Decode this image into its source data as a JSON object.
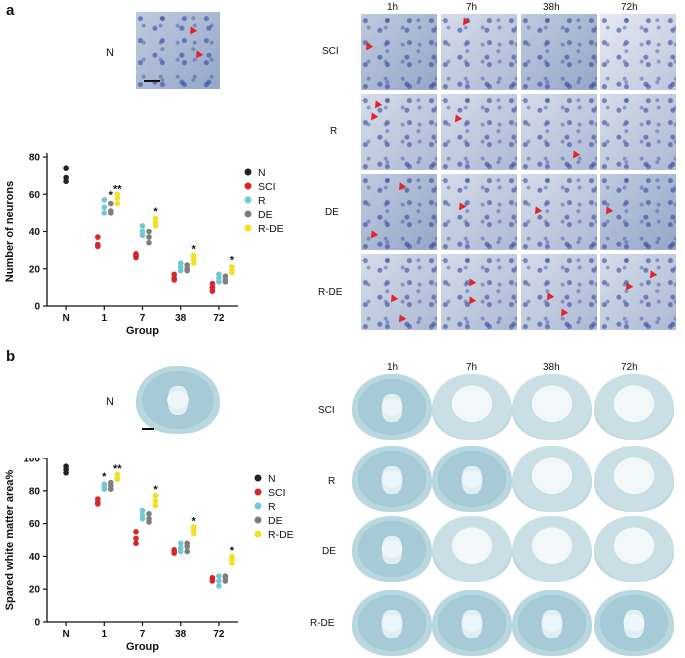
{
  "panels": {
    "a": {
      "letter": "a",
      "control_label": "N",
      "time_labels": [
        "1h",
        "7h",
        "38h",
        "72h"
      ],
      "row_labels": [
        "SCI",
        "R",
        "DE",
        "R-DE"
      ]
    },
    "b": {
      "letter": "b",
      "control_label": "N",
      "time_labels": [
        "1h",
        "7h",
        "38h",
        "72h"
      ],
      "row_labels": [
        "SCI",
        "R",
        "DE",
        "R-DE"
      ]
    }
  },
  "colors": {
    "N": "#222222",
    "SCI": "#d7262b",
    "R": "#72c8d1",
    "DE": "#7e7e7e",
    "R-DE": "#f2e024"
  },
  "chart_data": [
    {
      "type": "scatter",
      "title": "",
      "xlabel": "Group",
      "ylabel": "Number of neurons",
      "categories": [
        "N",
        "1",
        "7",
        "38",
        "72"
      ],
      "ylim": [
        0,
        80
      ],
      "yticks": [
        0,
        20,
        40,
        60,
        80
      ],
      "legend_placement": "right",
      "series": [
        {
          "name": "N",
          "color": "#222222",
          "points": [
            {
              "cat": "N",
              "values": [
                74,
                69,
                67
              ]
            }
          ]
        },
        {
          "name": "SCI",
          "color": "#d7262b",
          "points": [
            {
              "cat": "1",
              "values": [
                37,
                33,
                32
              ]
            },
            {
              "cat": "7",
              "values": [
                28,
                27,
                26
              ]
            },
            {
              "cat": "38",
              "values": [
                17,
                15,
                14
              ]
            },
            {
              "cat": "72",
              "values": [
                12,
                10,
                8
              ]
            }
          ]
        },
        {
          "name": "R",
          "color": "#72c8d1",
          "points": [
            {
              "cat": "1",
              "values": [
                57,
                53,
                50
              ]
            },
            {
              "cat": "7",
              "values": [
                43,
                40,
                38
              ]
            },
            {
              "cat": "38",
              "values": [
                23,
                21,
                19
              ]
            },
            {
              "cat": "72",
              "values": [
                17,
                15,
                13
              ]
            }
          ]
        },
        {
          "name": "DE",
          "color": "#7e7e7e",
          "points": [
            {
              "cat": "1",
              "values": [
                55,
                51,
                50
              ]
            },
            {
              "cat": "7",
              "values": [
                40,
                37,
                34
              ]
            },
            {
              "cat": "38",
              "values": [
                22,
                20,
                19
              ]
            },
            {
              "cat": "72",
              "values": [
                16,
                14,
                13
              ]
            }
          ]
        },
        {
          "name": "R-DE",
          "color": "#f2e024",
          "points": [
            {
              "cat": "1",
              "values": [
                60,
                58,
                55
              ]
            },
            {
              "cat": "7",
              "values": [
                47,
                45,
                43
              ]
            },
            {
              "cat": "38",
              "values": [
                27,
                25,
                23
              ]
            },
            {
              "cat": "72",
              "values": [
                21,
                19,
                18
              ]
            }
          ]
        }
      ],
      "annotations": [
        {
          "text": "*",
          "cat": "1",
          "series": "DE",
          "y": 60
        },
        {
          "text": "**",
          "cat": "1",
          "series": "R-DE",
          "y": 63
        },
        {
          "text": "*",
          "cat": "7",
          "series": "R-DE",
          "y": 51
        },
        {
          "text": "*",
          "cat": "38",
          "series": "R-DE",
          "y": 31
        },
        {
          "text": "*",
          "cat": "72",
          "series": "R-DE",
          "y": 25
        }
      ]
    },
    {
      "type": "scatter",
      "title": "",
      "xlabel": "Group",
      "ylabel": "Spared white matter area%",
      "categories": [
        "N",
        "1",
        "7",
        "38",
        "72"
      ],
      "ylim": [
        0,
        100
      ],
      "yticks": [
        0,
        20,
        40,
        60,
        80,
        100
      ],
      "legend_placement": "right",
      "series": [
        {
          "name": "N",
          "color": "#222222",
          "points": [
            {
              "cat": "N",
              "values": [
                95,
                93,
                91
              ]
            }
          ]
        },
        {
          "name": "SCI",
          "color": "#d7262b",
          "points": [
            {
              "cat": "1",
              "values": [
                75,
                73,
                72
              ]
            },
            {
              "cat": "7",
              "values": [
                55,
                51,
                48
              ]
            },
            {
              "cat": "38",
              "values": [
                44,
                43,
                42
              ]
            },
            {
              "cat": "72",
              "values": [
                27,
                26,
                25
              ]
            }
          ]
        },
        {
          "name": "R",
          "color": "#72c8d1",
          "points": [
            {
              "cat": "1",
              "values": [
                84,
                82,
                81
              ]
            },
            {
              "cat": "7",
              "values": [
                68,
                65,
                63
              ]
            },
            {
              "cat": "38",
              "values": [
                48,
                45,
                43
              ]
            },
            {
              "cat": "72",
              "values": [
                28,
                25,
                22
              ]
            }
          ]
        },
        {
          "name": "DE",
          "color": "#7e7e7e",
          "points": [
            {
              "cat": "1",
              "values": [
                85,
                83,
                81
              ]
            },
            {
              "cat": "7",
              "values": [
                66,
                63,
                61
              ]
            },
            {
              "cat": "38",
              "values": [
                48,
                46,
                43
              ]
            },
            {
              "cat": "72",
              "values": [
                28,
                27,
                25
              ]
            }
          ]
        },
        {
          "name": "R-DE",
          "color": "#f2e024",
          "points": [
            {
              "cat": "1",
              "values": [
                90,
                88,
                87
              ]
            },
            {
              "cat": "7",
              "values": [
                77,
                74,
                71
              ]
            },
            {
              "cat": "38",
              "values": [
                58,
                56,
                54
              ]
            },
            {
              "cat": "72",
              "values": [
                40,
                38,
                36
              ]
            }
          ]
        }
      ],
      "annotations": [
        {
          "text": "*",
          "cat": "1",
          "series": "R",
          "y": 89
        },
        {
          "text": "**",
          "cat": "1",
          "series": "R-DE",
          "y": 94
        },
        {
          "text": "*",
          "cat": "7",
          "series": "R-DE",
          "y": 81
        },
        {
          "text": "*",
          "cat": "38",
          "series": "R-DE",
          "y": 62
        },
        {
          "text": "*",
          "cat": "72",
          "series": "R-DE",
          "y": 44
        }
      ]
    }
  ]
}
